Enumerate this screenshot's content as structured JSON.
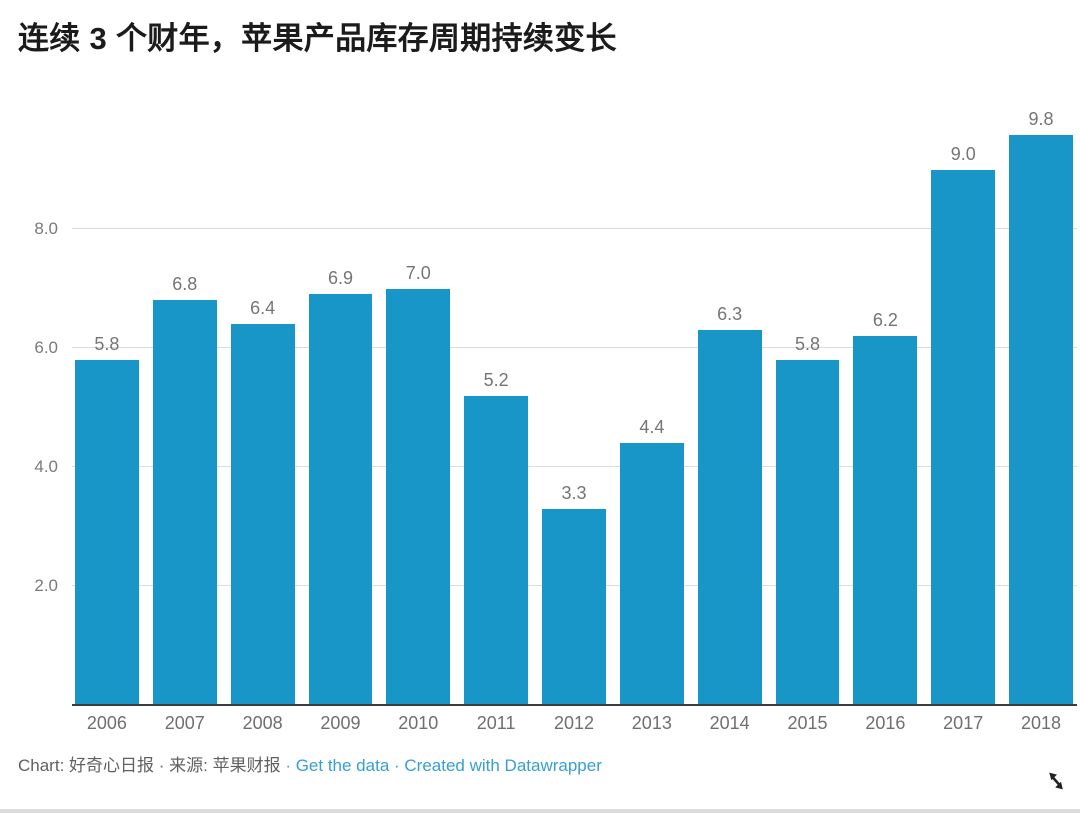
{
  "title": "连续 3 个财年，苹果产品库存周期持续变长",
  "colors": {
    "bar": "#1896c8",
    "link": "#359fd6",
    "title_text": "#1b1b1b",
    "label_gray": "#757575",
    "footer_gray": "#616161",
    "gridline": "#dcdcdc",
    "axis_line": "#3c3c3c"
  },
  "chart_data": {
    "type": "bar",
    "title": "连续 3 个财年，苹果产品库存周期持续变长",
    "categories": [
      "2006",
      "2007",
      "2008",
      "2009",
      "2010",
      "2011",
      "2012",
      "2013",
      "2014",
      "2015",
      "2016",
      "2017",
      "2018"
    ],
    "values": [
      5.8,
      6.8,
      6.4,
      6.9,
      7.0,
      5.2,
      3.3,
      4.4,
      6.3,
      5.8,
      6.2,
      9.0,
      9.8
    ],
    "value_labels": [
      "5.8",
      "6.8",
      "6.4",
      "6.9",
      "7.0",
      "5.2",
      "3.3",
      "4.4",
      "6.3",
      "5.8",
      "6.2",
      "9.0",
      "9.8"
    ],
    "xlabel": "",
    "ylabel": "",
    "yticks": [
      2.0,
      4.0,
      6.0,
      8.0
    ],
    "ytick_labels": [
      "2.0",
      "4.0",
      "6.0",
      "8.0"
    ],
    "ylim": [
      0,
      10
    ],
    "grid": "horizontal",
    "legend": "none",
    "bar_color": "#1896c8"
  },
  "footer": {
    "parts": [
      {
        "name": "chart-credit",
        "text": "Chart: 好奇心日报",
        "style": "text"
      },
      {
        "name": "separator",
        "text": " · ",
        "style": "text"
      },
      {
        "name": "source-credit",
        "text": "来源: 苹果财报",
        "style": "text"
      },
      {
        "name": "separator",
        "text": " · ",
        "style": "link-sep"
      },
      {
        "name": "get-the-data-link",
        "text": "Get the data",
        "style": "link"
      },
      {
        "name": "separator",
        "text": " · ",
        "style": "link-sep"
      },
      {
        "name": "created-with-datawrapper-link",
        "text": "Created with Datawrapper",
        "style": "link"
      }
    ]
  },
  "icons": {
    "resize": "resize-diagonal-nw-se-arrow"
  }
}
